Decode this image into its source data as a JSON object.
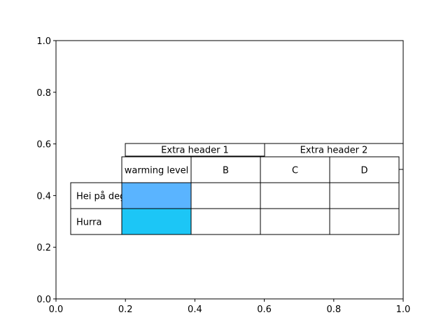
{
  "chart_data": {
    "type": "table",
    "xlim": [
      0,
      1
    ],
    "ylim": [
      0,
      1
    ],
    "xticks": [
      "0.0",
      "0.2",
      "0.4",
      "0.6",
      "0.8",
      "1.0"
    ],
    "yticks": [
      "0.0",
      "0.2",
      "0.4",
      "0.6",
      "0.8",
      "1.0"
    ],
    "extra_headers": [
      "Extra header 1",
      "Extra header 2"
    ],
    "column_headers": [
      "warming level",
      "B",
      "C",
      "D"
    ],
    "row_labels": [
      "Hei på deg",
      "Hurra"
    ],
    "cells": [
      [
        "",
        "",
        "",
        ""
      ],
      [
        "",
        "",
        "",
        ""
      ]
    ],
    "cell_colors": [
      [
        "#5ab4ff",
        "#ffffff",
        "#ffffff",
        "#ffffff"
      ],
      [
        "#1cc6f6",
        "#ffffff",
        "#ffffff",
        "#ffffff"
      ]
    ]
  }
}
